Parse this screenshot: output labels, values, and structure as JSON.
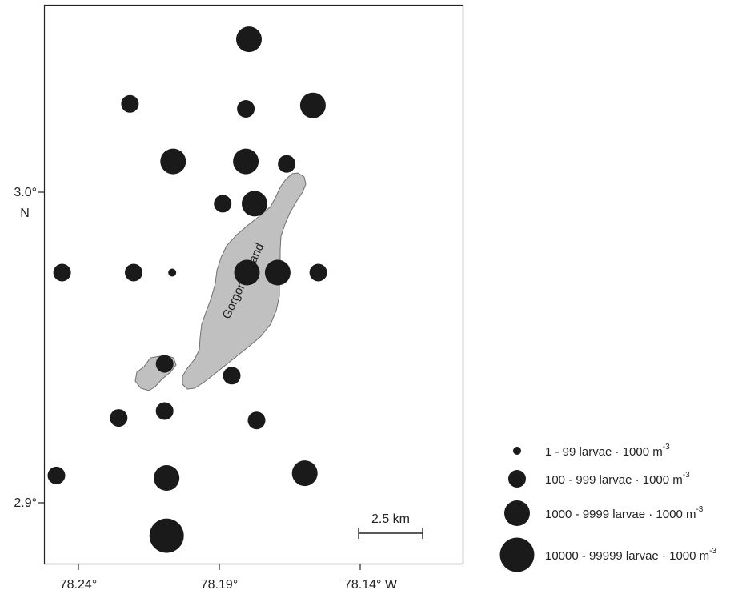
{
  "map": {
    "island_label": "Gorgona Island",
    "lat_ticks": [
      {
        "value": 3.0,
        "line1": "3.0°",
        "line2": "N"
      },
      {
        "value": 2.9,
        "line1": "2.9°",
        "line2": ""
      }
    ],
    "lon_ticks": [
      {
        "value": -78.24,
        "label": "78.24°"
      },
      {
        "value": -78.19,
        "label": "78.19°"
      },
      {
        "value": -78.14,
        "label": "78.14° W"
      }
    ],
    "scale_bar": {
      "label": "2.5 km",
      "length_km": 2.5
    },
    "colors": {
      "frame": "#222222",
      "island_fill": "#c0c0c0",
      "island_stroke": "#6f6f6f",
      "station": "#1a1a1a"
    }
  },
  "legend": [
    {
      "class": 1,
      "text": "1 - 99 larvae · 1000 m",
      "sup": "-3"
    },
    {
      "class": 2,
      "text": "100 - 999 larvae · 1000 m",
      "sup": "-3"
    },
    {
      "class": 3,
      "text": "1000 - 9999 larvae · 1000 m",
      "sup": "-3"
    },
    {
      "class": 4,
      "text": "10000 - 99999 larvae · 1000 m",
      "sup": "-3"
    }
  ],
  "stations": [
    {
      "lon": -78.1795,
      "lat": 3.0492,
      "abundance_class": 3
    },
    {
      "lon": -78.2217,
      "lat": 3.0284,
      "abundance_class": 2
    },
    {
      "lon": -78.1806,
      "lat": 3.0268,
      "abundance_class": 2
    },
    {
      "lon": -78.1568,
      "lat": 3.0279,
      "abundance_class": 3
    },
    {
      "lon": -78.2064,
      "lat": 3.0099,
      "abundance_class": 3
    },
    {
      "lon": -78.1806,
      "lat": 3.0099,
      "abundance_class": 3
    },
    {
      "lon": -78.1661,
      "lat": 3.0091,
      "abundance_class": 2
    },
    {
      "lon": -78.1888,
      "lat": 2.9963,
      "abundance_class": 2
    },
    {
      "lon": -78.1775,
      "lat": 2.9963,
      "abundance_class": 3
    },
    {
      "lon": -78.2458,
      "lat": 2.9741,
      "abundance_class": 2
    },
    {
      "lon": -78.2204,
      "lat": 2.9741,
      "abundance_class": 2
    },
    {
      "lon": -78.2067,
      "lat": 2.9741,
      "abundance_class": 1
    },
    {
      "lon": -78.1802,
      "lat": 2.9741,
      "abundance_class": 3
    },
    {
      "lon": -78.1693,
      "lat": 2.9741,
      "abundance_class": 3
    },
    {
      "lon": -78.1549,
      "lat": 2.9741,
      "abundance_class": 2
    },
    {
      "lon": -78.2094,
      "lat": 2.9447,
      "abundance_class": 2
    },
    {
      "lon": -78.1856,
      "lat": 2.9409,
      "abundance_class": 2
    },
    {
      "lon": -78.2257,
      "lat": 2.9273,
      "abundance_class": 2
    },
    {
      "lon": -78.2094,
      "lat": 2.9295,
      "abundance_class": 2
    },
    {
      "lon": -78.1768,
      "lat": 2.9265,
      "abundance_class": 2
    },
    {
      "lon": -78.2478,
      "lat": 2.9088,
      "abundance_class": 2
    },
    {
      "lon": -78.2087,
      "lat": 2.908,
      "abundance_class": 3
    },
    {
      "lon": -78.1597,
      "lat": 2.9095,
      "abundance_class": 3
    },
    {
      "lon": -78.2087,
      "lat": 2.8894,
      "abundance_class": 4
    }
  ]
}
